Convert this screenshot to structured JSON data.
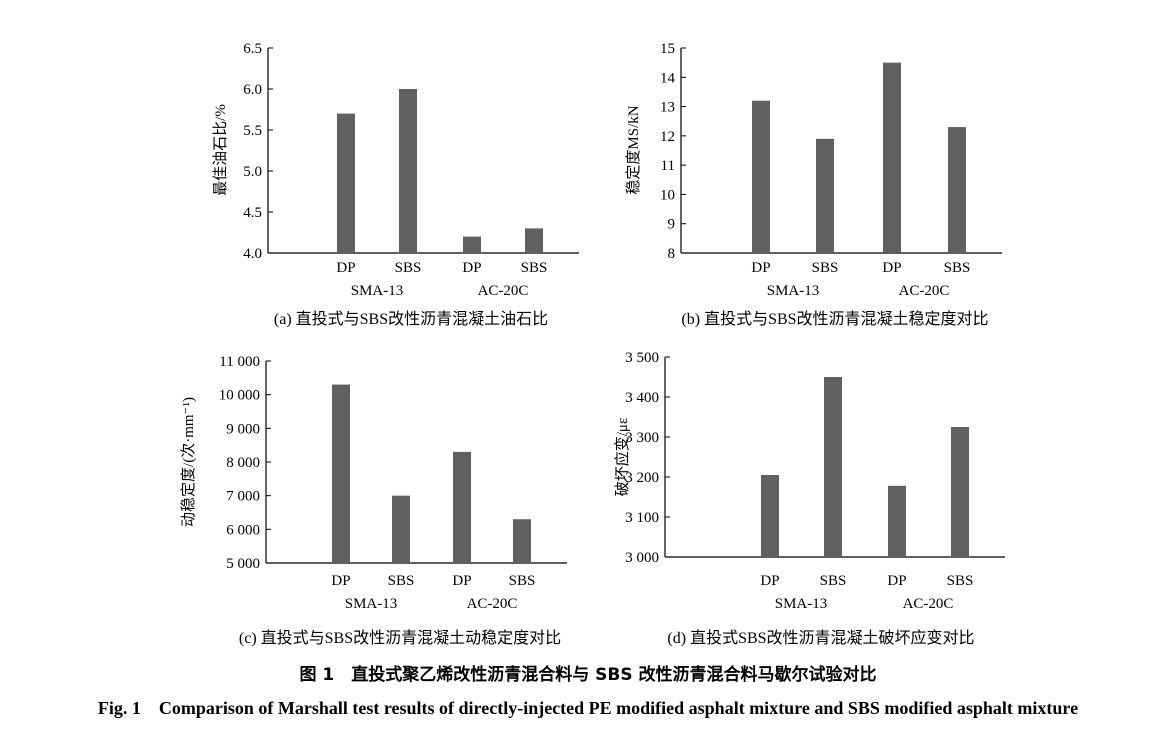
{
  "figure": {
    "title_cn": "图 1　直投式聚乙烯改性沥青混合料与 SBS 改性沥青混合料马歇尔试验对比",
    "title_en": "Fig. 1　Comparison of Marshall test results of directly-injected PE modified asphalt mixture and SBS modified asphalt mixture"
  },
  "style": {
    "bar_color": "#606060",
    "axis_color": "#000000"
  },
  "chart_data": [
    {
      "type": "bar",
      "caption": "(a) 直投式与SBS改性沥青混凝土油石比",
      "ylabel": "最佳油石比/%",
      "categories": [
        "DP",
        "SBS",
        "DP",
        "SBS"
      ],
      "groups": [
        "SMA-13",
        "AC-20C"
      ],
      "values": [
        5.7,
        6.0,
        4.2,
        4.3
      ],
      "ylim": [
        4.0,
        6.5
      ],
      "yticks": [
        4.0,
        4.5,
        5.0,
        5.5,
        6.0,
        6.5
      ],
      "ytick_labels": [
        "4.0",
        "4.5",
        "5.0",
        "5.5",
        "6.0",
        "6.5"
      ]
    },
    {
      "type": "bar",
      "caption": "(b) 直投式与SBS改性沥青混凝土稳定度对比",
      "ylabel": "稳定度MS/kN",
      "categories": [
        "DP",
        "SBS",
        "DP",
        "SBS"
      ],
      "groups": [
        "SMA-13",
        "AC-20C"
      ],
      "values": [
        13.2,
        11.9,
        14.5,
        12.3
      ],
      "ylim": [
        8,
        15
      ],
      "yticks": [
        8,
        9,
        10,
        11,
        12,
        13,
        14,
        15
      ],
      "ytick_labels": [
        "8",
        "9",
        "10",
        "11",
        "12",
        "13",
        "14",
        "15"
      ]
    },
    {
      "type": "bar",
      "caption": "(c) 直投式与SBS改性沥青混凝土动稳定度对比",
      "ylabel": "动稳定度/(次·mm⁻¹)",
      "categories": [
        "DP",
        "SBS",
        "DP",
        "SBS"
      ],
      "groups": [
        "SMA-13",
        "AC-20C"
      ],
      "values": [
        10300,
        7000,
        8300,
        6300
      ],
      "ylim": [
        5000,
        11000
      ],
      "yticks": [
        5000,
        6000,
        7000,
        8000,
        9000,
        10000,
        11000
      ],
      "ytick_labels": [
        "5 000",
        "6 000",
        "7 000",
        "8 000",
        "9 000",
        "10 000",
        "11 000"
      ]
    },
    {
      "type": "bar",
      "caption": "(d) 直投式SBS改性沥青混凝土破坏应变对比",
      "ylabel": "破坏应变/με",
      "categories": [
        "DP",
        "SBS",
        "DP",
        "SBS"
      ],
      "groups": [
        "SMA-13",
        "AC-20C"
      ],
      "values": [
        3205,
        3450,
        3178,
        3325
      ],
      "ylim": [
        3000,
        3500
      ],
      "yticks": [
        3000,
        3100,
        3200,
        3300,
        3400,
        3500
      ],
      "ytick_labels": [
        "3 000",
        "3 100",
        "3 200",
        "3 300",
        "3 400",
        "3 500"
      ]
    }
  ]
}
